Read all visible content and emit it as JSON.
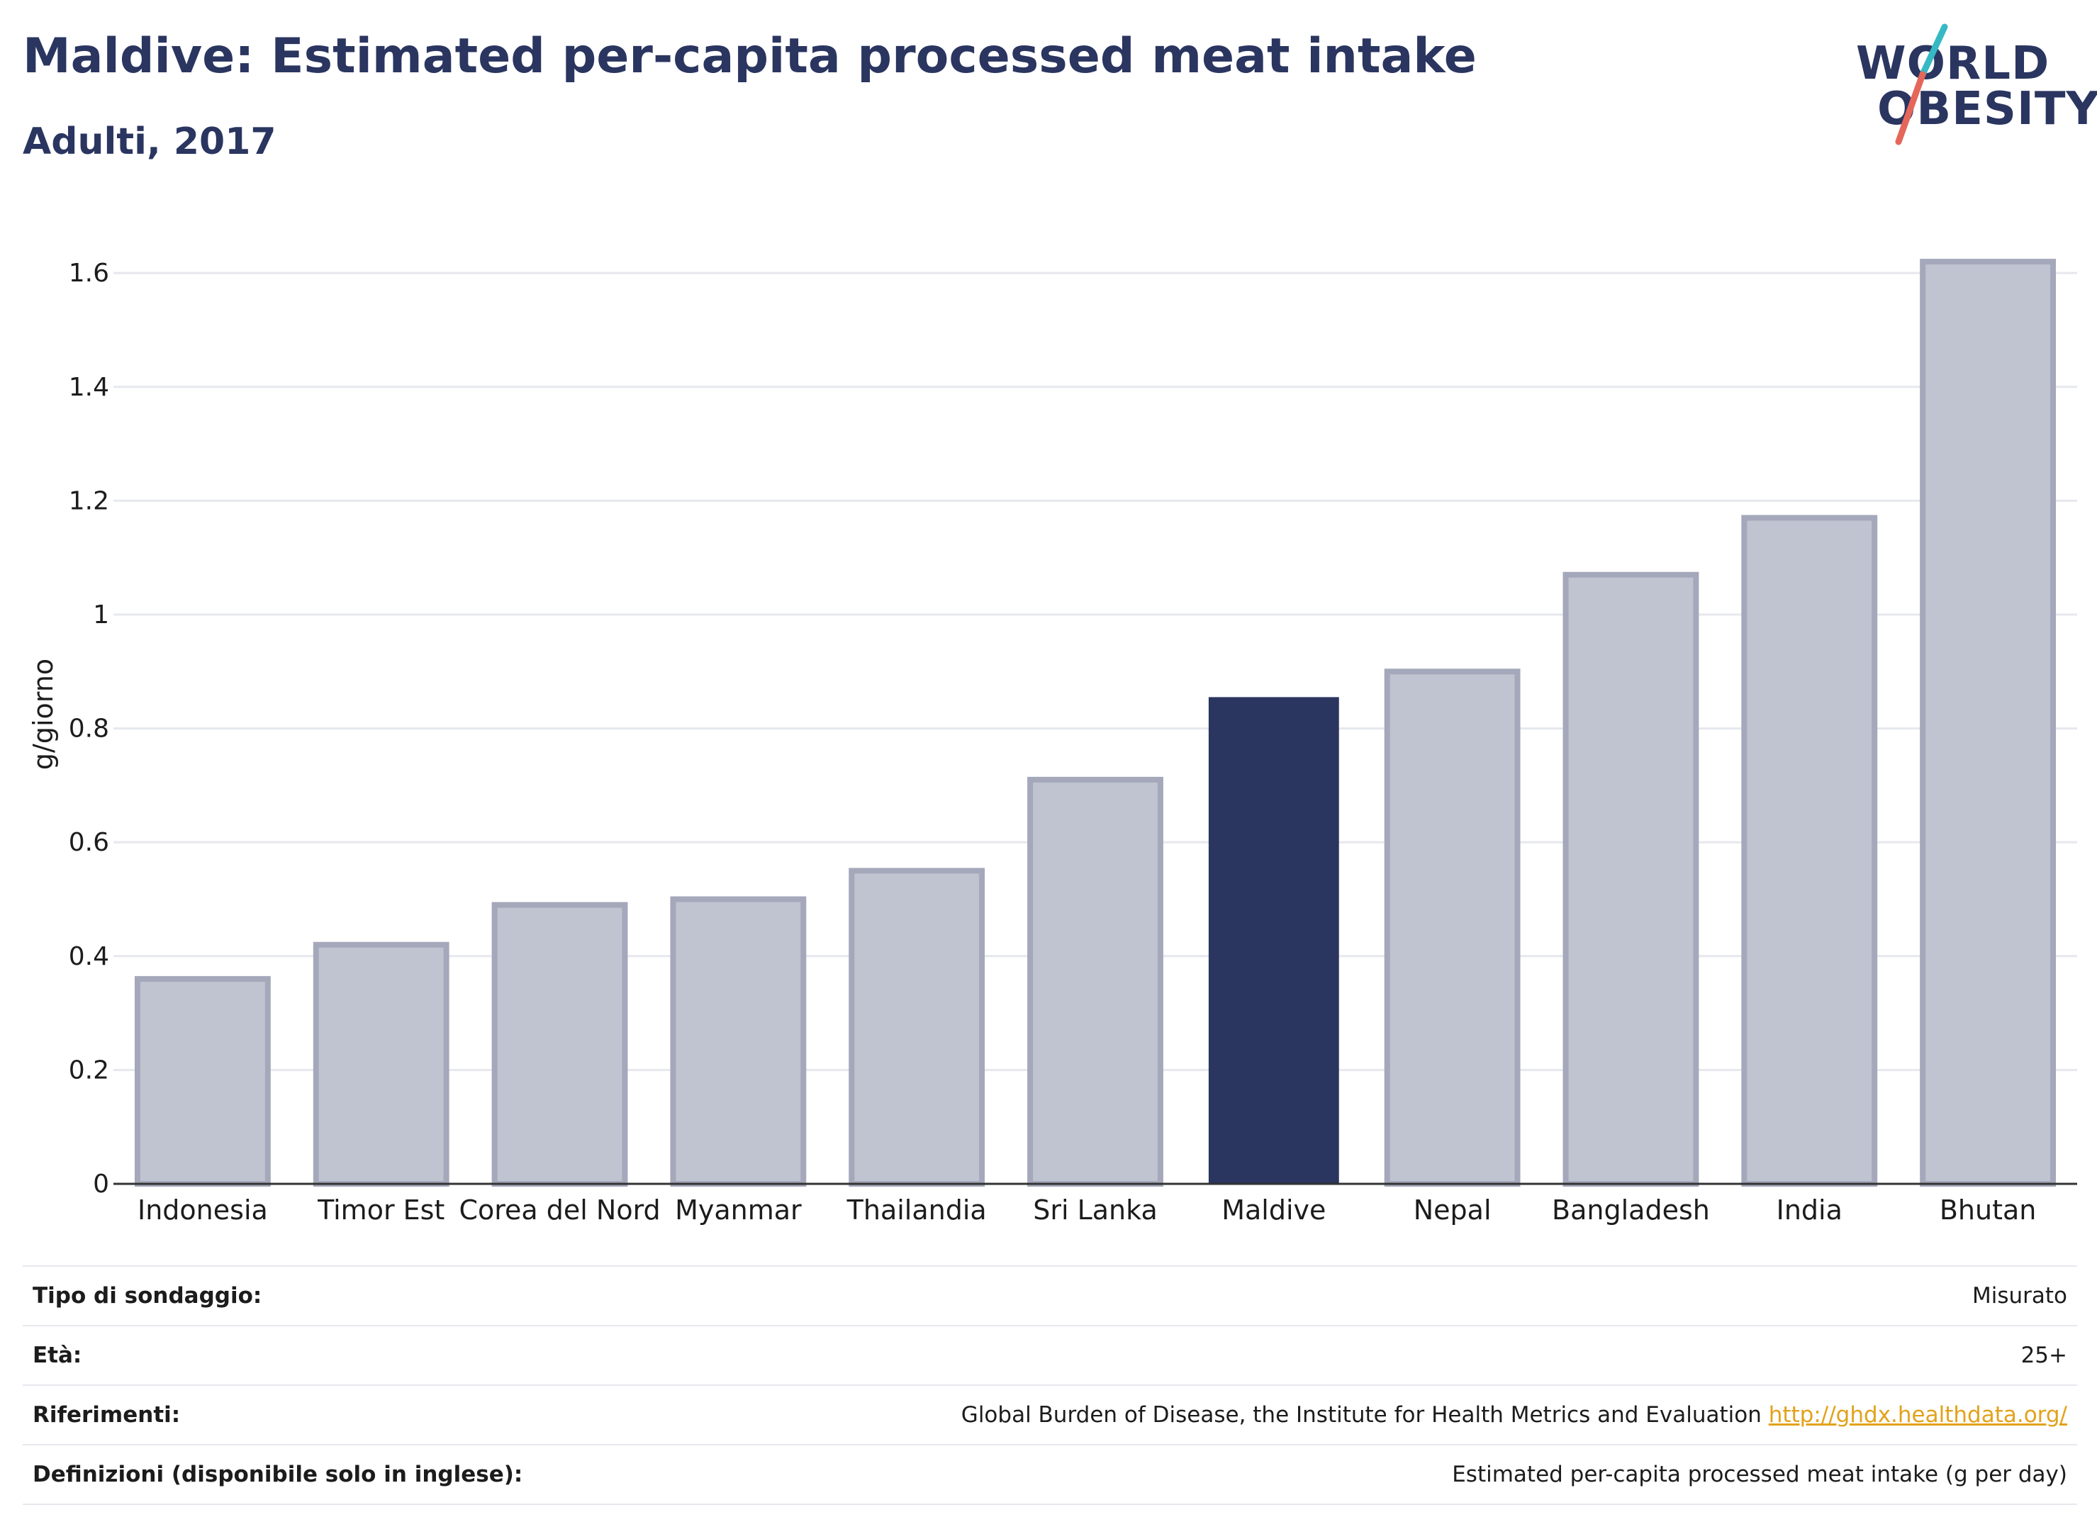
{
  "title": "Maldive: Estimated per-capita processed meat intake",
  "subtitle": "Adulti, 2017",
  "logo": {
    "line1": "WORLD",
    "line2": "OBESITY",
    "slash_colors": [
      "#36b9c4",
      "#e5675a"
    ]
  },
  "colors": {
    "bar": "#c0c3d0",
    "bar_border": "#a4a8ba",
    "highlight": "#2a3560",
    "grid": "#e6e8ee",
    "axis": "#333333",
    "link": "#e2a21a"
  },
  "chart_data": {
    "type": "bar",
    "categories": [
      "Indonesia",
      "Timor Est",
      "Corea del Nord",
      "Myanmar",
      "Thailandia",
      "Sri Lanka",
      "Maldive",
      "Nepal",
      "Bangladesh",
      "India",
      "Bhutan"
    ],
    "values": [
      0.36,
      0.42,
      0.49,
      0.5,
      0.55,
      0.71,
      0.855,
      0.9,
      1.07,
      1.17,
      1.62
    ],
    "highlight": "Maldive",
    "ylabel": "g/giorno",
    "xlabel": "",
    "ylim": [
      0,
      1.65
    ],
    "yticks": [
      0,
      0.2,
      0.4,
      0.6,
      0.8,
      1,
      1.2,
      1.4,
      1.6
    ],
    "ytick_labels": [
      "0",
      "0.2",
      "0.4",
      "0.6",
      "0.8",
      "1",
      "1.2",
      "1.4",
      "1.6"
    ],
    "grid": true,
    "legend": false
  },
  "meta": [
    {
      "label": "Tipo di sondaggio:",
      "value": "Misurato"
    },
    {
      "label": "Età:",
      "value": "25+"
    },
    {
      "label": "Riferimenti:",
      "value": "Global Burden of Disease, the Institute for Health Metrics and Evaluation",
      "link": "http://ghdx.healthdata.org/"
    },
    {
      "label": "Definizioni (disponibile solo in inglese):",
      "value": "Estimated per-capita processed meat intake (g per day)"
    }
  ]
}
